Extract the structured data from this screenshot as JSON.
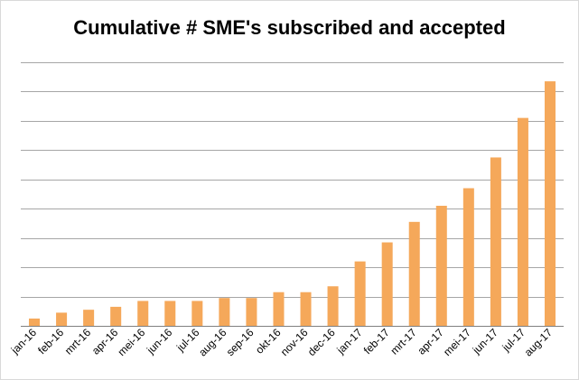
{
  "chart_data": {
    "type": "bar",
    "title": "Cumulative # SME's subscribed and accepted",
    "xlabel": "",
    "ylabel": "",
    "categories": [
      "jan-16",
      "feb-16",
      "mrt-16",
      "apr-16",
      "mei-16",
      "jun-16",
      "jul-16",
      "aug-16",
      "sep-16",
      "okt-16",
      "nov-16",
      "dec-16",
      "jan-17",
      "feb-17",
      "mrt-17",
      "apr-17",
      "mei-17",
      "jun-17",
      "jul-17",
      "aug-17"
    ],
    "values": [
      2.5,
      4.5,
      5.5,
      6.5,
      8.5,
      8.5,
      8.5,
      9.5,
      9.5,
      11.5,
      11.5,
      13.5,
      22,
      28.5,
      35.5,
      41,
      47,
      57.5,
      71,
      83.5
    ],
    "ylim": [
      0,
      90
    ],
    "y_gridlines": 9,
    "y_tick_labels_shown": false,
    "grid": true,
    "bar_color": "#f5a85a",
    "grid_color": "#a6a6a6"
  }
}
